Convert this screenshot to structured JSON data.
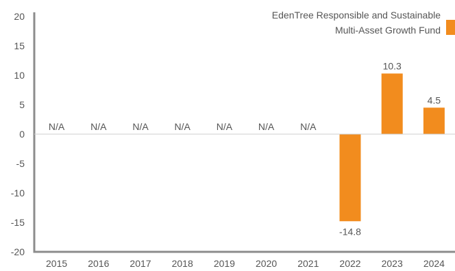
{
  "chart_data": {
    "type": "bar",
    "categories": [
      "2015",
      "2016",
      "2017",
      "2018",
      "2019",
      "2020",
      "2021",
      "2022",
      "2023",
      "2024"
    ],
    "series": [
      {
        "name": "EdenTree Responsible and Sustainable Multi-Asset Growth Fund",
        "values": [
          null,
          null,
          null,
          null,
          null,
          null,
          null,
          -14.8,
          10.3,
          4.5
        ],
        "labels": [
          "N/A",
          "N/A",
          "N/A",
          "N/A",
          "N/A",
          "N/A",
          "N/A",
          "-14.8",
          "10.3",
          "4.5"
        ],
        "color": "#F28C1E"
      }
    ],
    "ylim": [
      -20,
      20
    ],
    "yticks": [
      20,
      15,
      10,
      5,
      0,
      -5,
      -10,
      -15,
      -20
    ],
    "legend": {
      "position": "top-right",
      "lines": [
        "EdenTree Responsible and Sustainable",
        "Multi-Asset Growth Fund"
      ]
    },
    "grid": false,
    "axis_color": "#8c8c8c"
  }
}
